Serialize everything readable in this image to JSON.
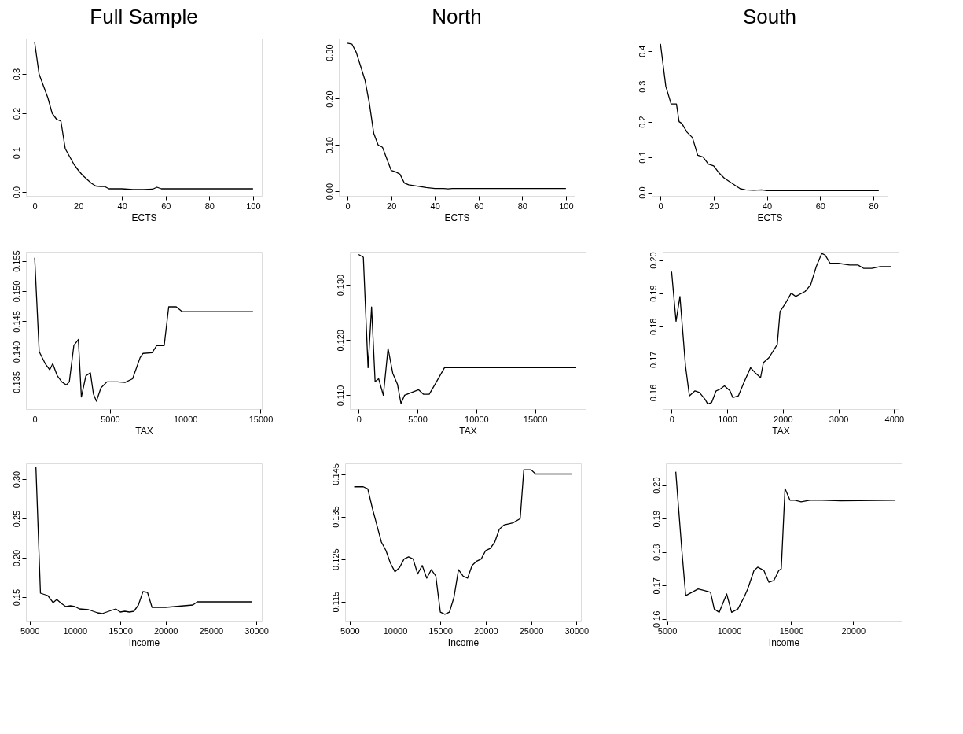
{
  "chart_data": [
    {
      "type": "line",
      "title": "Full Sample",
      "xlabel": "ECTS",
      "xlim": [
        -4,
        104
      ],
      "xticks": [
        0,
        20,
        40,
        60,
        80,
        100
      ],
      "ylim": [
        -0.01,
        0.39
      ],
      "yticks": [
        {
          "value": 0,
          "label": "0.0"
        },
        0.1,
        0.2,
        0.3
      ],
      "grid": false,
      "x": [
        0,
        2,
        4,
        6,
        8,
        10,
        12,
        14,
        16,
        18,
        20,
        22,
        24,
        26,
        28,
        30,
        32,
        34,
        36,
        40,
        45,
        50,
        54,
        56,
        58,
        60,
        100
      ],
      "series": [
        {
          "color": "#000000",
          "values": [
            0.38,
            0.3,
            0.27,
            0.24,
            0.2,
            0.185,
            0.18,
            0.11,
            0.09,
            0.07,
            0.055,
            0.042,
            0.032,
            0.022,
            0.015,
            0.014,
            0.014,
            0.008,
            0.008,
            0.008,
            0.006,
            0.006,
            0.007,
            0.012,
            0.008,
            0.008,
            0.008
          ]
        }
      ]
    },
    {
      "type": "line",
      "title": "North",
      "xlabel": "ECTS",
      "xlim": [
        -4,
        104
      ],
      "xticks": [
        0,
        20,
        40,
        60,
        80,
        100
      ],
      "ylim": [
        -0.01,
        0.33
      ],
      "yticks": [
        {
          "value": 0,
          "label": "0.00"
        },
        {
          "value": 0.1,
          "label": "0.10"
        },
        {
          "value": 0.2,
          "label": "0.20"
        },
        {
          "value": 0.3,
          "label": "0.30"
        }
      ],
      "grid": false,
      "x": [
        0,
        2,
        4,
        6,
        8,
        10,
        12,
        14,
        16,
        18,
        20,
        22,
        24,
        26,
        28,
        32,
        36,
        40,
        44,
        46,
        48,
        100
      ],
      "series": [
        {
          "color": "#000000",
          "values": [
            0.32,
            0.318,
            0.3,
            0.27,
            0.24,
            0.19,
            0.125,
            0.1,
            0.095,
            0.07,
            0.045,
            0.042,
            0.037,
            0.018,
            0.014,
            0.011,
            0.008,
            0.006,
            0.006,
            0.005,
            0.006,
            0.006
          ]
        }
      ]
    },
    {
      "type": "line",
      "title": "South",
      "xlabel": "ECTS",
      "xlim": [
        -3.3,
        85.3
      ],
      "xticks": [
        0,
        20,
        40,
        60,
        80
      ],
      "ylim": [
        -0.01,
        0.435
      ],
      "yticks": [
        {
          "value": 0,
          "label": "0.0"
        },
        0.1,
        0.2,
        0.3,
        0.4
      ],
      "grid": false,
      "x": [
        0,
        2,
        4,
        6,
        7,
        8,
        10,
        12,
        14,
        16,
        18,
        20,
        22,
        24,
        26,
        28,
        30,
        32,
        35,
        38,
        40,
        82
      ],
      "series": [
        {
          "color": "#000000",
          "values": [
            0.42,
            0.3,
            0.25,
            0.25,
            0.2,
            0.195,
            0.17,
            0.155,
            0.105,
            0.1,
            0.08,
            0.075,
            0.055,
            0.04,
            0.03,
            0.02,
            0.01,
            0.007,
            0.006,
            0.007,
            0.005,
            0.005
          ]
        }
      ]
    },
    {
      "type": "line",
      "xlabel": "TAX",
      "xlim": [
        -580,
        15080
      ],
      "xticks": [
        0,
        5000,
        10000,
        15000
      ],
      "ylim": [
        0.1305,
        0.1565
      ],
      "yticks": [
        0.135,
        {
          "value": 0.14,
          "label": "0.140"
        },
        0.145,
        {
          "value": 0.15,
          "label": "0.150"
        },
        0.155
      ],
      "grid": false,
      "x": [
        0,
        300,
        700,
        1000,
        1200,
        1500,
        1800,
        2100,
        2300,
        2600,
        2900,
        3100,
        3400,
        3700,
        3900,
        4100,
        4400,
        4800,
        5500,
        6000,
        6500,
        7000,
        7200,
        7800,
        8100,
        8600,
        8900,
        9400,
        9800,
        14500
      ],
      "series": [
        {
          "color": "#000000",
          "values": [
            0.1555,
            0.14,
            0.138,
            0.137,
            0.138,
            0.136,
            0.135,
            0.1345,
            0.135,
            0.141,
            0.142,
            0.1325,
            0.136,
            0.1365,
            0.133,
            0.1318,
            0.134,
            0.135,
            0.135,
            0.1349,
            0.1355,
            0.139,
            0.1397,
            0.1398,
            0.141,
            0.141,
            0.1474,
            0.1474,
            0.1466,
            0.1466
          ]
        }
      ]
    },
    {
      "type": "line",
      "xlabel": "TAX",
      "xlim": [
        -750,
        19300
      ],
      "xticks": [
        0,
        5000,
        10000,
        15000
      ],
      "ylim": [
        0.1075,
        0.136
      ],
      "yticks": [
        {
          "value": 0.11,
          "label": "0.110"
        },
        {
          "value": 0.12,
          "label": "0.120"
        },
        {
          "value": 0.13,
          "label": "0.130"
        }
      ],
      "grid": false,
      "x": [
        0,
        400,
        800,
        1100,
        1400,
        1700,
        2100,
        2500,
        2900,
        3300,
        3600,
        3900,
        4500,
        5100,
        5500,
        6000,
        6500,
        7300,
        18500
      ],
      "series": [
        {
          "color": "#000000",
          "values": [
            0.1355,
            0.135,
            0.115,
            0.126,
            0.1125,
            0.113,
            0.11,
            0.1185,
            0.114,
            0.112,
            0.1085,
            0.11,
            0.1105,
            0.111,
            0.1102,
            0.1102,
            0.112,
            0.115,
            0.115
          ]
        }
      ]
    },
    {
      "type": "line",
      "xlabel": "TAX",
      "xlim": [
        -160,
        4080
      ],
      "xticks": [
        0,
        1000,
        2000,
        3000,
        4000
      ],
      "ylim": [
        0.155,
        0.2025
      ],
      "yticks": [
        {
          "value": 0.16,
          "label": "0.16"
        },
        0.17,
        0.18,
        0.19,
        {
          "value": 0.2,
          "label": "0.20"
        }
      ],
      "grid": false,
      "x": [
        0,
        80,
        150,
        250,
        320,
        420,
        500,
        600,
        650,
        720,
        800,
        870,
        950,
        1050,
        1100,
        1200,
        1300,
        1420,
        1500,
        1600,
        1650,
        1750,
        1900,
        1950,
        2050,
        2150,
        2230,
        2400,
        2500,
        2600,
        2700,
        2760,
        2850,
        3000,
        3200,
        3350,
        3450,
        3600,
        3750,
        3950
      ],
      "series": [
        {
          "color": "#000000",
          "values": [
            0.1965,
            0.1815,
            0.189,
            0.168,
            0.159,
            0.1605,
            0.16,
            0.158,
            0.1565,
            0.157,
            0.1605,
            0.161,
            0.162,
            0.1605,
            0.1585,
            0.159,
            0.163,
            0.1675,
            0.166,
            0.1645,
            0.169,
            0.1705,
            0.1745,
            0.1845,
            0.187,
            0.19,
            0.189,
            0.1905,
            0.1925,
            0.198,
            0.202,
            0.2015,
            0.199,
            0.199,
            0.1985,
            0.1985,
            0.1975,
            0.1975,
            0.198,
            0.198
          ]
        }
      ]
    },
    {
      "type": "line",
      "xlabel": "Income",
      "xlim": [
        4600,
        30600
      ],
      "xticks": [
        5000,
        10000,
        15000,
        20000,
        25000,
        30000
      ],
      "ylim": [
        0.12,
        0.32
      ],
      "yticks": [
        0.15,
        {
          "value": 0.2,
          "label": "0.20"
        },
        0.25,
        {
          "value": 0.3,
          "label": "0.30"
        }
      ],
      "grid": false,
      "x": [
        5700,
        6200,
        7000,
        7600,
        8000,
        8500,
        9000,
        9500,
        10000,
        10500,
        11500,
        12500,
        13000,
        14000,
        14500,
        15000,
        15500,
        16000,
        16500,
        17000,
        17500,
        18000,
        18500,
        20000,
        22000,
        23000,
        23500,
        29500
      ],
      "series": [
        {
          "color": "#000000",
          "values": [
            0.315,
            0.155,
            0.152,
            0.143,
            0.147,
            0.142,
            0.138,
            0.139,
            0.138,
            0.135,
            0.134,
            0.13,
            0.129,
            0.133,
            0.135,
            0.131,
            0.132,
            0.131,
            0.132,
            0.14,
            0.157,
            0.156,
            0.137,
            0.137,
            0.139,
            0.14,
            0.144,
            0.144
          ]
        }
      ]
    },
    {
      "type": "line",
      "xlabel": "Income",
      "xlim": [
        4500,
        30500
      ],
      "xticks": [
        5000,
        10000,
        15000,
        20000,
        25000,
        30000
      ],
      "ylim": [
        0.1105,
        0.1475
      ],
      "yticks": [
        0.115,
        0.125,
        0.135,
        0.145
      ],
      "grid": false,
      "x": [
        5500,
        6500,
        7000,
        7500,
        8000,
        8500,
        9000,
        9500,
        10000,
        10500,
        11000,
        11500,
        12000,
        12500,
        13000,
        13500,
        14000,
        14500,
        15000,
        15500,
        16000,
        16500,
        17000,
        17500,
        18000,
        18500,
        19000,
        19500,
        20000,
        20500,
        21000,
        21500,
        22000,
        23000,
        23800,
        24200,
        25000,
        25500,
        29500
      ],
      "series": [
        {
          "color": "#000000",
          "values": [
            0.142,
            0.142,
            0.1415,
            0.137,
            0.133,
            0.129,
            0.127,
            0.124,
            0.122,
            0.123,
            0.125,
            0.1255,
            0.125,
            0.1215,
            0.1235,
            0.1205,
            0.1225,
            0.121,
            0.1125,
            0.112,
            0.1125,
            0.116,
            0.1225,
            0.121,
            0.1205,
            0.1235,
            0.1245,
            0.125,
            0.127,
            0.1275,
            0.129,
            0.132,
            0.133,
            0.1335,
            0.1345,
            0.146,
            0.146,
            0.145,
            0.145
          ]
        }
      ]
    },
    {
      "type": "line",
      "xlabel": "Income",
      "xlim": [
        4900,
        23900
      ],
      "xticks": [
        5000,
        10000,
        15000,
        20000
      ],
      "ylim": [
        0.1595,
        0.2065
      ],
      "yticks": [
        {
          "value": 0.16,
          "label": "0.16"
        },
        0.17,
        0.18,
        0.19,
        {
          "value": 0.2,
          "label": "0.20"
        }
      ],
      "grid": false,
      "x": [
        5700,
        6200,
        6500,
        7000,
        7500,
        8000,
        8500,
        8800,
        9200,
        9800,
        10200,
        10700,
        11200,
        11500,
        12000,
        12300,
        12800,
        13200,
        13600,
        14000,
        14200,
        14500,
        14900,
        15300,
        15800,
        16500,
        17500,
        19000,
        23400
      ],
      "series": [
        {
          "color": "#000000",
          "values": [
            0.204,
            0.18,
            0.167,
            0.168,
            0.169,
            0.1685,
            0.168,
            0.163,
            0.162,
            0.1675,
            0.162,
            0.163,
            0.1665,
            0.169,
            0.1745,
            0.1755,
            0.1745,
            0.171,
            0.1715,
            0.1745,
            0.175,
            0.199,
            0.1955,
            0.1955,
            0.195,
            0.1955,
            0.1955,
            0.1953,
            0.1955
          ]
        }
      ]
    }
  ]
}
